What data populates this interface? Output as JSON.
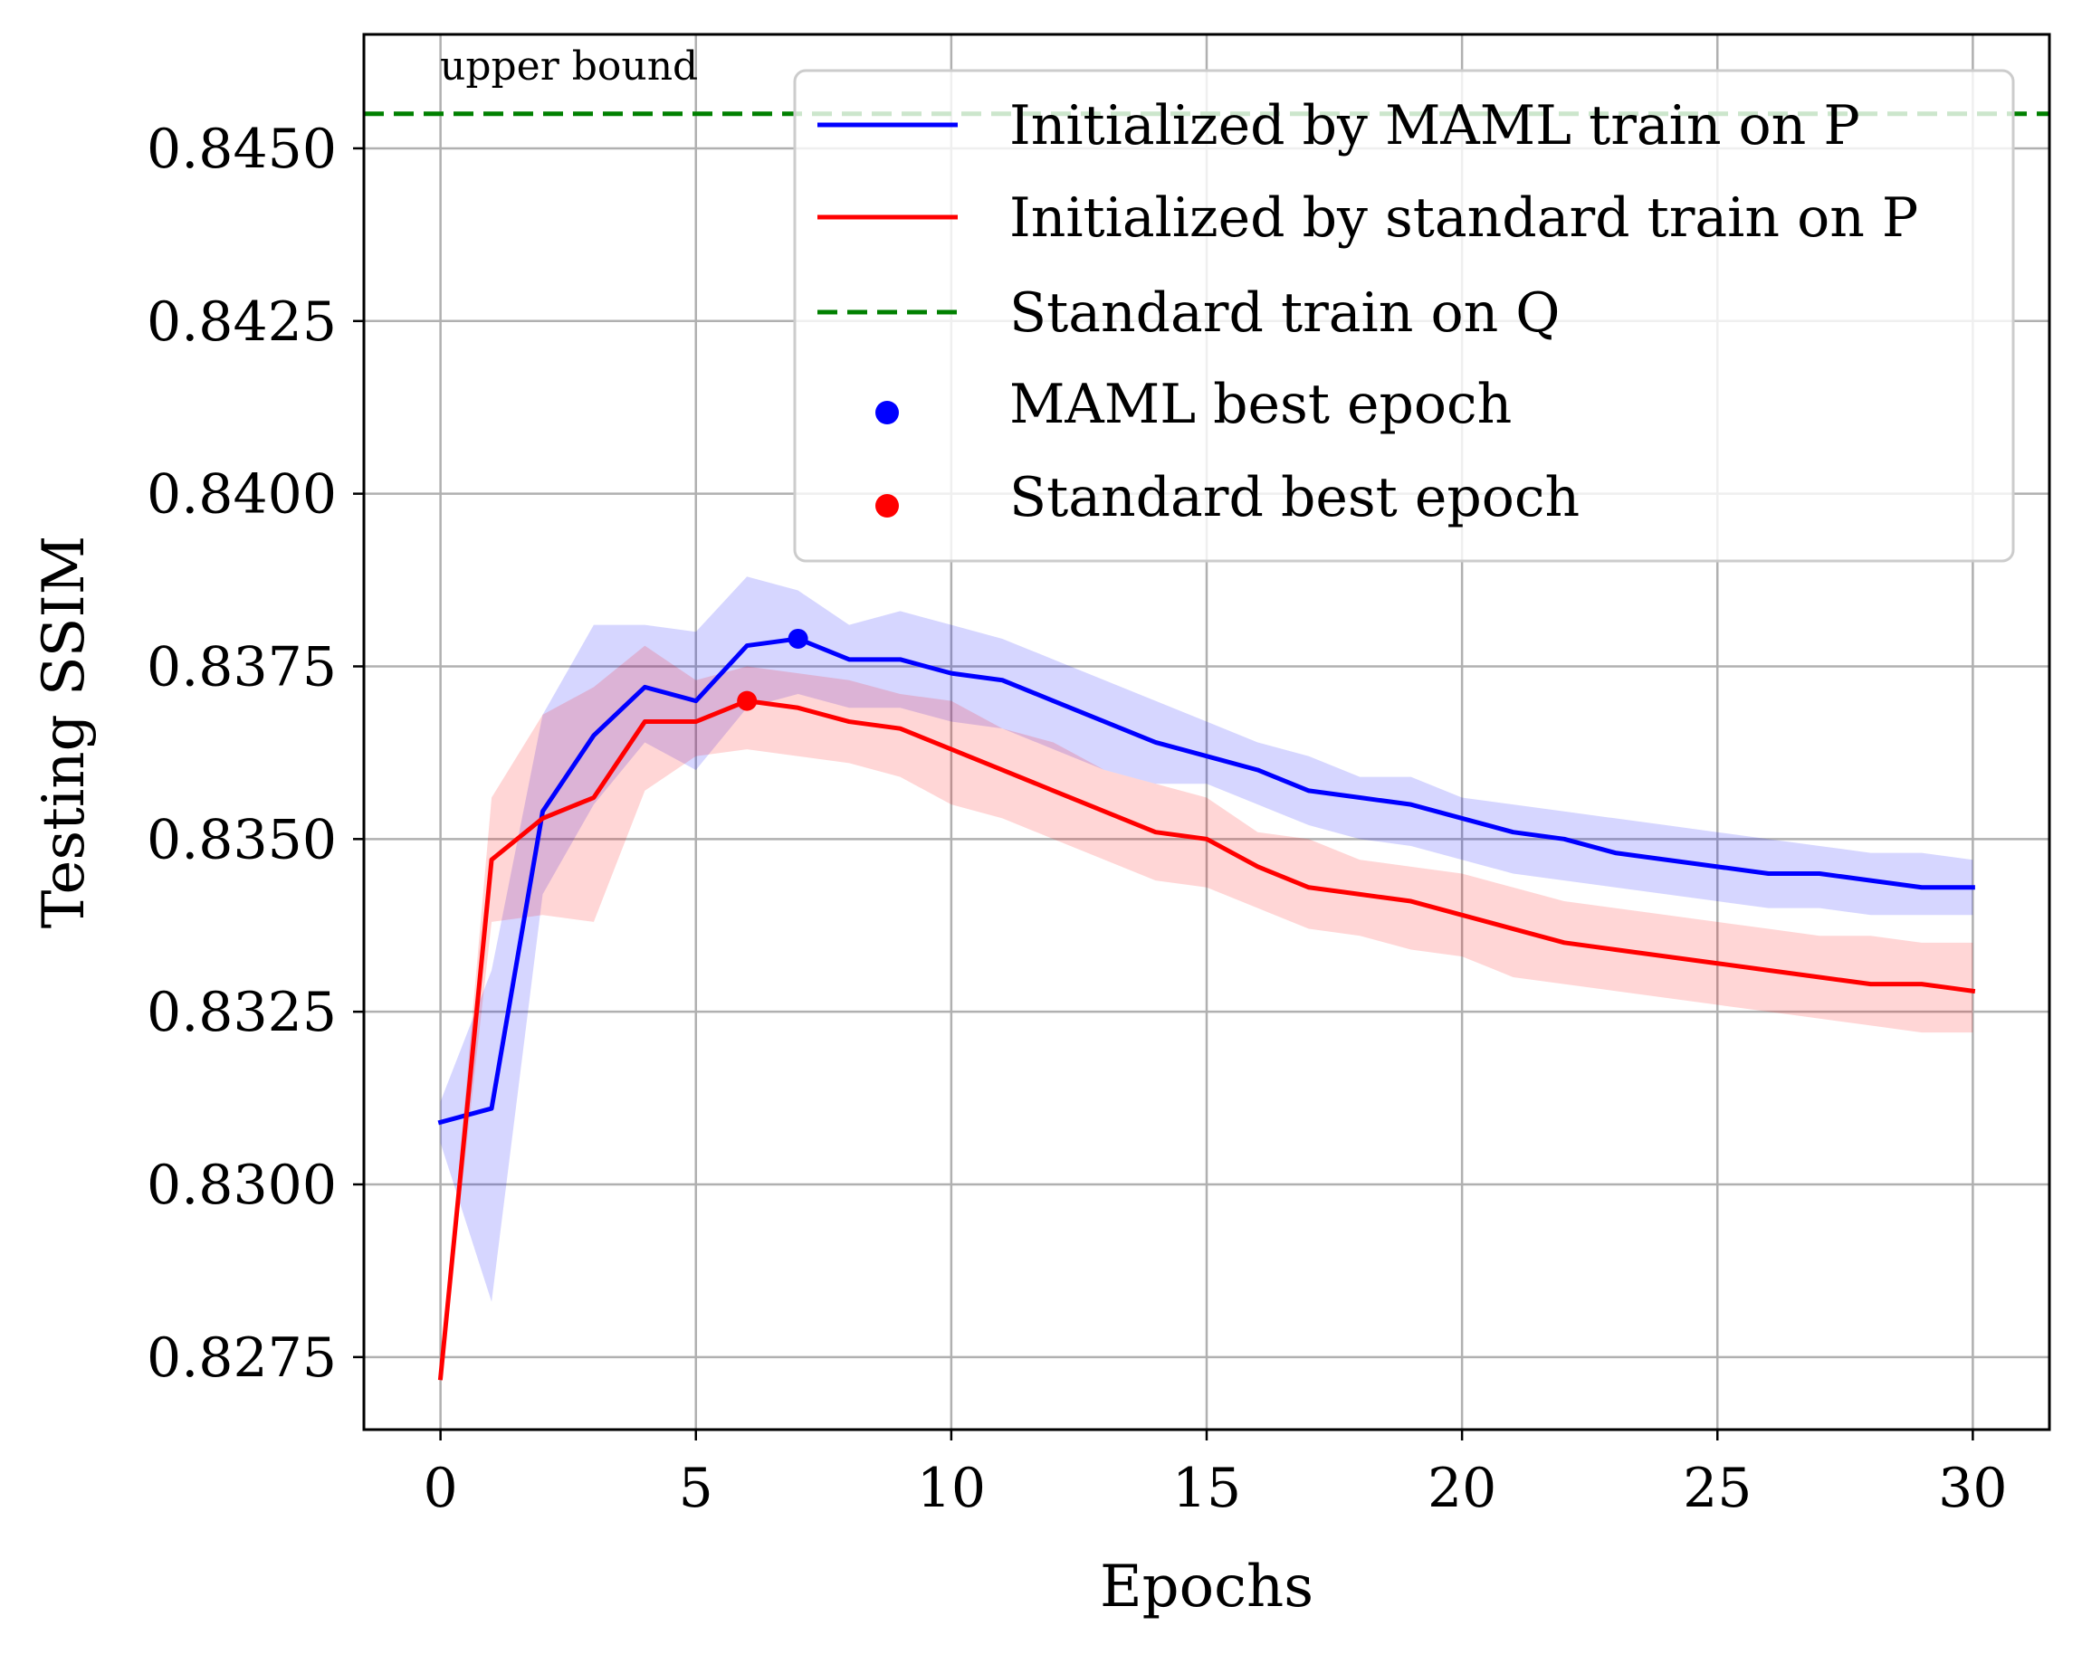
{
  "chart_data": {
    "type": "line",
    "xlabel": "Epochs",
    "ylabel": "Testing SSIM",
    "xlim": [
      -1.5,
      31.5
    ],
    "ylim": [
      0.82645,
      0.84665
    ],
    "xticks": [
      0,
      5,
      10,
      15,
      20,
      25,
      30
    ],
    "xtick_labels": [
      "0",
      "5",
      "10",
      "15",
      "20",
      "25",
      "30"
    ],
    "yticks": [
      0.8275,
      0.83,
      0.8325,
      0.835,
      0.8375,
      0.84,
      0.8425,
      0.845
    ],
    "ytick_labels": [
      "0.8275",
      "0.8300",
      "0.8325",
      "0.8350",
      "0.8375",
      "0.8400",
      "0.8425",
      "0.8450"
    ],
    "grid": true,
    "legend_position": "upper right",
    "x": [
      0,
      1,
      2,
      3,
      4,
      5,
      6,
      7,
      8,
      9,
      10,
      11,
      12,
      13,
      14,
      15,
      16,
      17,
      18,
      19,
      20,
      21,
      22,
      23,
      24,
      25,
      26,
      27,
      28,
      29,
      30
    ],
    "series": [
      {
        "name": "Initialized by MAML train on P",
        "color": "#0000ff",
        "style": "solid",
        "values": [
          0.8309,
          0.8311,
          0.8354,
          0.8365,
          0.8372,
          0.837,
          0.8378,
          0.8379,
          0.8376,
          0.8376,
          0.8374,
          0.8373,
          0.837,
          0.8367,
          0.8364,
          0.8362,
          0.836,
          0.8357,
          0.8356,
          0.8355,
          0.8353,
          0.8351,
          0.835,
          0.8348,
          0.8347,
          0.8346,
          0.8345,
          0.8345,
          0.8344,
          0.8343,
          0.8343
        ],
        "band_lower": [
          0.8306,
          0.8283,
          0.8342,
          0.8355,
          0.8364,
          0.836,
          0.8369,
          0.8371,
          0.8369,
          0.8369,
          0.8367,
          0.8366,
          0.8363,
          0.836,
          0.8358,
          0.8358,
          0.8355,
          0.8352,
          0.835,
          0.8349,
          0.8347,
          0.8345,
          0.8344,
          0.8343,
          0.8342,
          0.8341,
          0.834,
          0.834,
          0.8339,
          0.8339,
          0.8339
        ],
        "band_upper": [
          0.8312,
          0.8331,
          0.8368,
          0.8381,
          0.8381,
          0.838,
          0.8388,
          0.8386,
          0.8381,
          0.8383,
          0.8381,
          0.8379,
          0.8376,
          0.8373,
          0.837,
          0.8367,
          0.8364,
          0.8362,
          0.8359,
          0.8359,
          0.8356,
          0.8355,
          0.8354,
          0.8353,
          0.8352,
          0.8351,
          0.835,
          0.8349,
          0.8348,
          0.8348,
          0.8347
        ]
      },
      {
        "name": "Initialized by standard train on P",
        "color": "#ff0000",
        "style": "solid",
        "values": [
          0.8272,
          0.8347,
          0.8353,
          0.8356,
          0.8367,
          0.8367,
          0.837,
          0.8369,
          0.8367,
          0.8366,
          0.8363,
          0.836,
          0.8357,
          0.8354,
          0.8351,
          0.835,
          0.8346,
          0.8343,
          0.8342,
          0.8341,
          0.8339,
          0.8337,
          0.8335,
          0.8334,
          0.8333,
          0.8332,
          0.8331,
          0.833,
          0.8329,
          0.8329,
          0.8328
        ],
        "band_lower": [
          0.8272,
          0.8338,
          0.8339,
          0.8338,
          0.8357,
          0.8362,
          0.8363,
          0.8362,
          0.8361,
          0.8359,
          0.8355,
          0.8353,
          0.835,
          0.8347,
          0.8344,
          0.8343,
          0.834,
          0.8337,
          0.8336,
          0.8334,
          0.8333,
          0.833,
          0.8329,
          0.8328,
          0.8327,
          0.8326,
          0.8325,
          0.8324,
          0.8323,
          0.8322,
          0.8322
        ],
        "band_upper": [
          0.8272,
          0.8356,
          0.8368,
          0.8372,
          0.8378,
          0.8373,
          0.8375,
          0.8374,
          0.8373,
          0.8371,
          0.837,
          0.8366,
          0.8364,
          0.836,
          0.8358,
          0.8356,
          0.8351,
          0.835,
          0.8347,
          0.8346,
          0.8345,
          0.8343,
          0.8341,
          0.834,
          0.8339,
          0.8338,
          0.8337,
          0.8336,
          0.8336,
          0.8335,
          0.8335
        ]
      }
    ],
    "reference_line": {
      "name": "Standard train on Q",
      "color": "#008000",
      "style": "dashed",
      "y": 0.8455,
      "annotation": "upper bound"
    },
    "best_points": [
      {
        "name": "MAML best epoch",
        "color": "#0000ff",
        "x": 7,
        "y": 0.8379
      },
      {
        "name": "Standard best epoch",
        "color": "#ff0000",
        "x": 6,
        "y": 0.837
      }
    ]
  }
}
